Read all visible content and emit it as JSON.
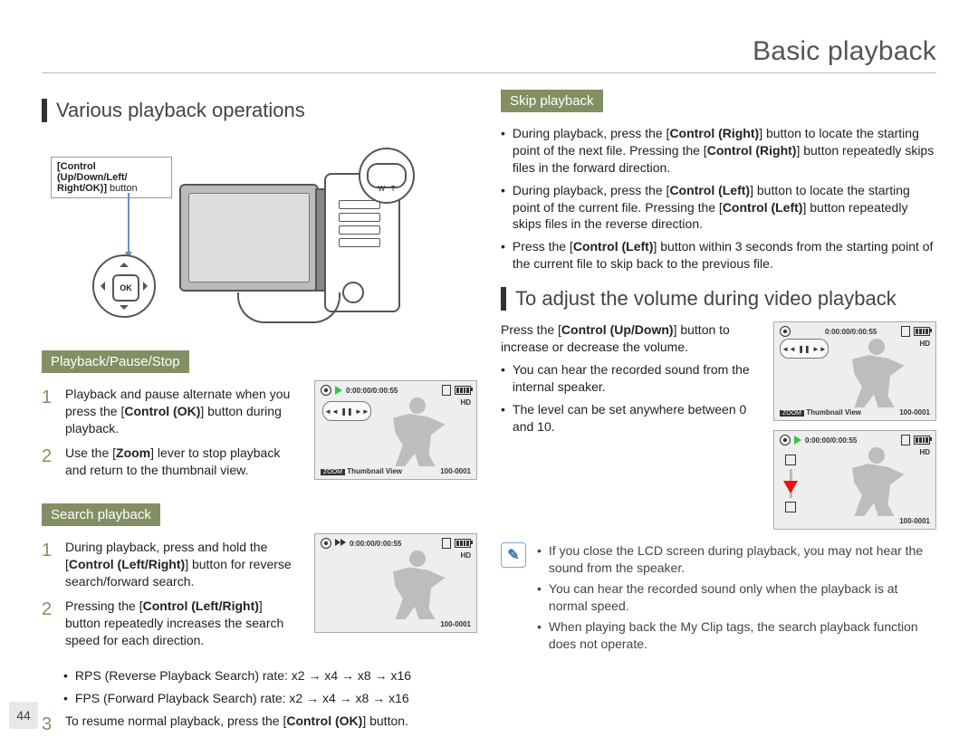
{
  "page": {
    "title": "Basic playback",
    "number": 44
  },
  "left": {
    "section": "Various playback operations",
    "callout": {
      "line1": "[Control (Up/Down/Left/",
      "line2": "Right/OK)]",
      "line3": " button",
      "ok_label": "OK",
      "zoom_w": "W",
      "zoom_t": "T"
    },
    "pill1": "Playback/Pause/Stop",
    "steps1": [
      "Playback and pause alternate when you press the [Control (OK)] button during playback.",
      "Use the [Zoom] lever to stop playback and return to the thumbnail view."
    ],
    "pill2": "Search playback",
    "steps2": [
      "During playback, press and hold the [Control (Left/Right)] button for reverse search/forward search.",
      "Pressing the [Control (Left/Right)] button repeatedly increases the search speed for each direction."
    ],
    "rates": [
      "RPS (Reverse Playback Search) rate: x2 → x4 → x8 → x16",
      "FPS (Forward Playback Search) rate: x2 → x4 → x8 → x16"
    ],
    "step3": "To resume normal playback, press the [Control (OK)] button."
  },
  "right": {
    "pill": "Skip playback",
    "bullets": [
      "During playback, press the [Control (Right)] button to locate the starting point of the next file. Pressing the [Control (Right)] button repeatedly skips files in the forward direction.",
      "During playback, press the [Control (Left)] button to locate the starting point of the current file. Pressing the [Control (Left)] button repeatedly skips files in the reverse direction.",
      "Press the [Control (Left)] button within 3 seconds from the starting point of the current file to skip back to the previous file."
    ],
    "section": "To adjust the volume during video playback",
    "intro": "Press the [Control (Up/Down)] button to increase or decrease the volume.",
    "volBullets": [
      "You can hear the recorded sound from the internal speaker.",
      "The level can be set anywhere between 0 and 10."
    ],
    "notes": [
      "If you close the LCD screen during playback, you may not hear the sound from the speaker.",
      "You can hear the recorded sound only when the playback is at normal speed.",
      "When playing back the My Clip tags, the search playback function does not operate."
    ]
  },
  "preview": {
    "timecode": "0:00:00/0:00:55",
    "hd": "HD",
    "thumb_label": "Thumbnail View",
    "zoom_label": "ZOOM",
    "clip_id": "100-0001",
    "transport": {
      "prev": "◄◄",
      "pause": "❚❚",
      "next": "►►"
    }
  },
  "colors": {
    "accent": "#838f63",
    "play_green": "#38c24b",
    "vol_marker": "#e11",
    "note_border": "#7aa6d6"
  }
}
